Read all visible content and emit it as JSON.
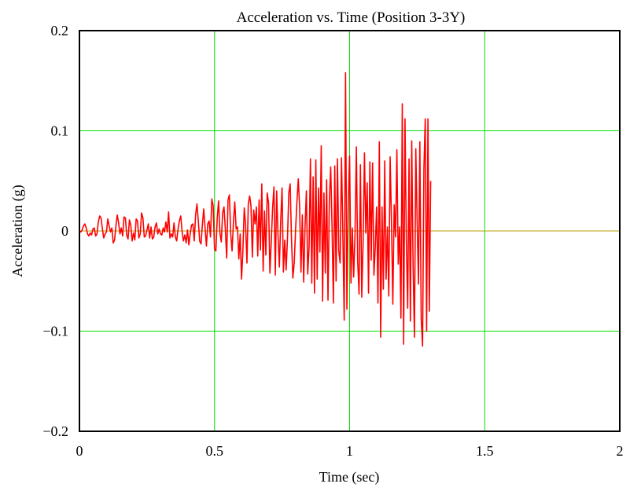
{
  "chart_data": {
    "type": "line",
    "title": "Acceleration vs. Time (Position 3-3Y)",
    "xlabel": "Time (sec)",
    "ylabel": "Acceleration (g)",
    "xlim": [
      0,
      2
    ],
    "ylim": [
      -0.2,
      0.2
    ],
    "x_ticks": [
      0,
      0.5,
      1,
      1.5,
      2
    ],
    "x_tick_labels": [
      "0",
      "0.5",
      "1",
      "1.5",
      "2"
    ],
    "y_ticks": [
      -0.2,
      -0.1,
      0,
      0.1,
      0.2
    ],
    "y_tick_labels": [
      "−0.2",
      "−0.1",
      "0",
      "0.1",
      "0.2"
    ],
    "grid": true,
    "legend": "none",
    "colors": {
      "series": "#ff0000",
      "grid": "#00e000",
      "axis": "#000000",
      "zero_line": "#b8a000"
    },
    "series": [
      {
        "x_start": 0,
        "x_step": 0.005,
        "values": [
          0.0,
          -0.001,
          0.001,
          0.005,
          0.007,
          0.003,
          -0.003,
          -0.005,
          -0.002,
          -0.004,
          0.002,
          0.003,
          -0.005,
          -0.003,
          0.009,
          0.015,
          0.013,
          0.002,
          -0.007,
          -0.003,
          -0.001,
          0.012,
          0.005,
          -0.001,
          0.003,
          -0.012,
          -0.009,
          0.005,
          0.016,
          0.008,
          -0.003,
          0.003,
          -0.005,
          0.014,
          0.013,
          -0.004,
          -0.008,
          0.011,
          0.006,
          -0.01,
          -0.002,
          -0.009,
          0.012,
          0.01,
          -0.007,
          -0.003,
          0.018,
          0.013,
          -0.006,
          -0.005,
          0.001,
          0.007,
          -0.007,
          0.004,
          -0.008,
          -0.006,
          0.004,
          0.008,
          -0.003,
          0.002,
          -0.003,
          -0.004,
          0.003,
          -0.001,
          0.009,
          -0.001,
          0.019,
          -0.007,
          -0.003,
          -0.006,
          0.008,
          -0.006,
          -0.01,
          0.002,
          0.01,
          0.015,
          -0.001,
          -0.01,
          -0.004,
          -0.012,
          0.001,
          -0.014,
          -0.003,
          0.006,
          0.007,
          -0.01,
          0.016,
          0.027,
          0.01,
          -0.01,
          -0.013,
          0.006,
          0.022,
          0.003,
          -0.015,
          0.007,
          0.01,
          -0.006,
          0.032,
          0.025,
          -0.018,
          -0.02,
          0.013,
          0.03,
          -0.002,
          -0.011,
          0.018,
          0.024,
          0.002,
          -0.027,
          0.031,
          0.036,
          -0.003,
          -0.02,
          0.009,
          0.029,
          0.002,
          0.004,
          -0.028,
          -0.003,
          -0.048,
          -0.02,
          0.023,
          0.006,
          -0.032,
          0.027,
          0.035,
          0.025,
          -0.026,
          0.021,
          0.007,
          0.024,
          -0.025,
          0.031,
          -0.019,
          0.047,
          -0.04,
          0.02,
          -0.024,
          0.038,
          0.028,
          -0.042,
          -0.011,
          0.023,
          0.044,
          -0.044,
          0.04,
          -0.004,
          -0.036,
          0.01,
          0.043,
          -0.041,
          -0.009,
          -0.039,
          -0.008,
          0.038,
          0.047,
          -0.009,
          -0.047,
          -0.032,
          0.001,
          0.029,
          0.052,
          0.024,
          -0.041,
          0.016,
          -0.051,
          0.004,
          0.04,
          -0.043,
          -0.016,
          0.072,
          -0.052,
          0.054,
          -0.062,
          0.071,
          -0.048,
          0.043,
          -0.021,
          0.085,
          -0.07,
          0.038,
          -0.042,
          0.051,
          -0.069,
          0.03,
          0.064,
          0.005,
          -0.072,
          0.065,
          -0.05,
          0.072,
          -0.02,
          -0.032,
          0.073,
          -0.003,
          -0.089,
          0.158,
          -0.078,
          0.026,
          0.075,
          -0.052,
          0.003,
          -0.046,
          -0.004,
          0.084,
          -0.031,
          -0.063,
          0.066,
          -0.066,
          -0.011,
          0.078,
          -0.002,
          0.048,
          -0.062,
          0.069,
          -0.029,
          0.068,
          -0.044,
          -0.016,
          0.024,
          -0.072,
          0.089,
          -0.106,
          0.024,
          -0.058,
          0.07,
          -0.048,
          0.004,
          -0.065,
          0.074,
          0.009,
          -0.073,
          0.026,
          -0.006,
          0.081,
          -0.033,
          0.004,
          -0.087,
          0.127,
          -0.113,
          0.112,
          -0.009,
          -0.077,
          0.072,
          -0.09,
          0.09,
          -0.034,
          -0.106,
          0.082,
          0.009,
          -0.053,
          0.089,
          -0.087,
          -0.115,
          0.062,
          0.112,
          -0.1,
          0.112,
          -0.08,
          0.05
        ]
      }
    ]
  }
}
